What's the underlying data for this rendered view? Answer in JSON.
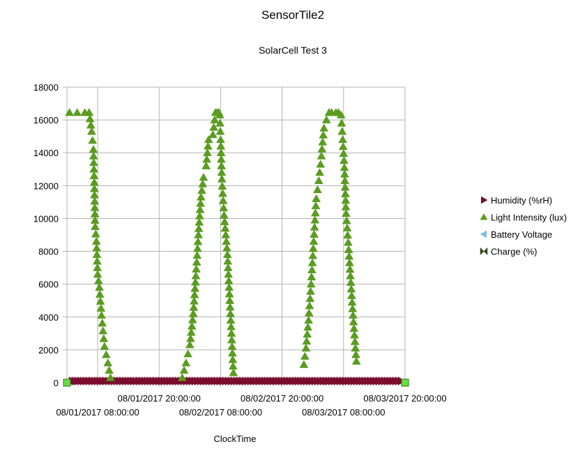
{
  "chart_data": {
    "type": "scatter",
    "title": "SensorTile2",
    "subtitle": "SolarCell Test 3",
    "xlabel": "ClockTime",
    "ylabel": "",
    "xlim": [
      "08/01/2017 02:00:00",
      "08/03/2017 20:00:00"
    ],
    "ylim": [
      0,
      18000
    ],
    "y_ticks": [
      "0",
      "2000",
      "4000",
      "6000",
      "8000",
      "10000",
      "12000",
      "14000",
      "16000",
      "18000"
    ],
    "x_ticks": [
      {
        "value": "08/01/2017 08:00:00",
        "row": "lower"
      },
      {
        "value": "08/01/2017 20:00:00",
        "row": "upper"
      },
      {
        "value": "08/02/2017 08:00:00",
        "row": "lower"
      },
      {
        "value": "08/02/2017 20:00:00",
        "row": "upper"
      },
      {
        "value": "08/03/2017 08:00:00",
        "row": "lower"
      },
      {
        "value": "08/03/2017 20:00:00",
        "row": "upper"
      }
    ],
    "grid": true,
    "legend_position": "right",
    "series": [
      {
        "name": "Humidity (%rH)",
        "color": "#7b0c2e",
        "marker": "triangle-right",
        "x": [
          "08/01/2017 03:00:00",
          "08/01/2017 12:00:00",
          "08/01/2017 20:00:00",
          "08/02/2017 04:00:00",
          "08/02/2017 12:00:00",
          "08/02/2017 20:00:00",
          "08/03/2017 04:00:00",
          "08/03/2017 12:00:00",
          "08/03/2017 19:30:00"
        ],
        "y": [
          60,
          60,
          60,
          60,
          60,
          60,
          60,
          60,
          60
        ]
      },
      {
        "name": "Light Intensity (lux)",
        "color": "#5a9c20",
        "marker": "triangle-up",
        "x": [
          "08/01/2017 02:30:00",
          "08/01/2017 04:00:00",
          "08/01/2017 05:30:00",
          "08/01/2017 06:20:00",
          "08/01/2017 06:50:00",
          "08/01/2017 07:10:00",
          "08/01/2017 07:20:00",
          "08/01/2017 07:30:00",
          "08/01/2017 07:45:00",
          "08/01/2017 08:00:00",
          "08/01/2017 08:20:00",
          "08/01/2017 08:45:00",
          "08/01/2017 09:20:00",
          "08/01/2017 10:00:00",
          "08/01/2017 10:30:00",
          "08/02/2017 00:30:00",
          "08/02/2017 01:15:00",
          "08/02/2017 02:00:00",
          "08/02/2017 02:40:00",
          "08/02/2017 03:10:00",
          "08/02/2017 03:40:00",
          "08/02/2017 04:10:00",
          "08/02/2017 04:40:00",
          "08/02/2017 05:10:00",
          "08/02/2017 05:40:00",
          "08/02/2017 06:30:00",
          "08/02/2017 07:00:00",
          "08/02/2017 07:20:00",
          "08/02/2017 07:40:00",
          "08/02/2017 07:50:00",
          "08/02/2017 08:00:00",
          "08/02/2017 08:15:00",
          "08/02/2017 08:40:00",
          "08/02/2017 09:20:00",
          "08/02/2017 10:30:00",
          "08/03/2017 00:15:00",
          "08/03/2017 00:40:00",
          "08/03/2017 01:10:00",
          "08/03/2017 01:40:00",
          "08/03/2017 02:10:00",
          "08/03/2017 02:40:00",
          "08/03/2017 03:10:00",
          "08/03/2017 03:40:00",
          "08/03/2017 04:10:00",
          "08/03/2017 04:40:00",
          "08/03/2017 05:10:00",
          "08/03/2017 05:40:00",
          "08/03/2017 06:30:00",
          "08/03/2017 07:00:00",
          "08/03/2017 07:30:00",
          "08/03/2017 07:50:00",
          "08/03/2017 08:10:00",
          "08/03/2017 08:30:00",
          "08/03/2017 09:00:00",
          "08/03/2017 09:40:00",
          "08/03/2017 10:30:00"
        ],
        "y": [
          16450,
          16450,
          16450,
          16450,
          15300,
          14200,
          12200,
          9500,
          8600,
          6600,
          5800,
          4100,
          2200,
          1200,
          300,
          300,
          1200,
          2300,
          4200,
          6500,
          9000,
          11300,
          12500,
          13200,
          14800,
          15100,
          16450,
          16450,
          16450,
          16300,
          14800,
          12400,
          10200,
          7800,
          600,
          1100,
          2100,
          3800,
          6000,
          8600,
          11200,
          12300,
          13800,
          15500,
          16000,
          16450,
          16450,
          16450,
          16450,
          16300,
          14800,
          13100,
          10300,
          8100,
          4900,
          1300
        ]
      },
      {
        "name": "Battery Voltage",
        "color": "#7fbfe6",
        "marker": "triangle-left",
        "x": [
          "08/01/2017 03:00:00",
          "08/01/2017 20:00:00",
          "08/02/2017 12:00:00",
          "08/03/2017 04:00:00",
          "08/03/2017 19:30:00"
        ],
        "y": [
          4,
          4,
          4,
          4,
          4
        ]
      },
      {
        "name": "Charge (%)",
        "color": "#35471a",
        "marker": "bowtie",
        "x": [
          "08/01/2017 03:00:00",
          "08/01/2017 20:00:00",
          "08/02/2017 12:00:00",
          "08/03/2017 04:00:00",
          "08/03/2017 19:30:00"
        ],
        "y": [
          80,
          80,
          80,
          80,
          80
        ]
      }
    ],
    "endpoint_markers_color": "#66dd44"
  }
}
